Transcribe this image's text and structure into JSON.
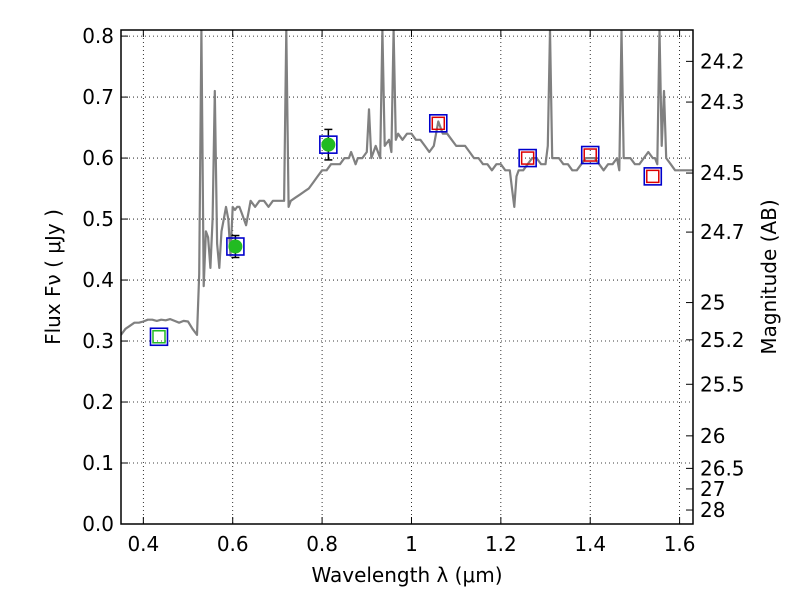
{
  "chart_data": {
    "type": "line",
    "xlabel": "Wavelength  λ (μm)",
    "ylabel": "Flux  Fν ( μJy )",
    "y2label": "Magnitude (AB)",
    "xlim": [
      0.35,
      1.63
    ],
    "ylim": [
      0.0,
      0.81
    ],
    "xticks": [
      0.4,
      0.6,
      0.8,
      1.0,
      1.2,
      1.4,
      1.6
    ],
    "xtick_labels": [
      "0.4",
      "0.6",
      "0.8",
      "1",
      "1.2",
      "1.4",
      "1.6"
    ],
    "yticks": [
      0.0,
      0.1,
      0.2,
      0.3,
      0.4,
      0.5,
      0.6,
      0.7,
      0.8
    ],
    "ytick_labels": [
      "0.0",
      "0.1",
      "0.2",
      "0.3",
      "0.4",
      "0.5",
      "0.6",
      "0.7",
      "0.8"
    ],
    "magnitude_ticks": [
      24.2,
      24.3,
      24.5,
      24.7,
      25,
      25.2,
      25.5,
      26,
      26.5,
      27,
      28
    ],
    "magnitude_tick_labels": [
      "24.2",
      "24.3",
      "24.5",
      "24.7",
      "25",
      "25.2",
      "25.5",
      "26",
      "26.5",
      "27",
      "28"
    ],
    "grid": true,
    "colors": {
      "model": "#808080",
      "observed": "#22bb22",
      "model_box": "#0000cc",
      "predicted_box": "#dd0000",
      "green_box": "#22bb22",
      "error_bar": "#000000"
    },
    "series": [
      {
        "kind": "model-spectrum",
        "x": [
          0.35,
          0.36,
          0.37,
          0.38,
          0.39,
          0.4,
          0.41,
          0.42,
          0.43,
          0.44,
          0.45,
          0.46,
          0.47,
          0.48,
          0.49,
          0.5,
          0.51,
          0.52,
          0.525,
          0.53,
          0.535,
          0.54,
          0.545,
          0.55,
          0.555,
          0.56,
          0.565,
          0.57,
          0.575,
          0.58,
          0.585,
          0.59,
          0.595,
          0.6,
          0.605,
          0.61,
          0.615,
          0.62,
          0.625,
          0.63,
          0.635,
          0.64,
          0.65,
          0.66,
          0.67,
          0.68,
          0.69,
          0.7,
          0.71,
          0.715,
          0.72,
          0.725,
          0.73,
          0.74,
          0.75,
          0.76,
          0.77,
          0.78,
          0.79,
          0.8,
          0.81,
          0.82,
          0.83,
          0.84,
          0.85,
          0.86,
          0.865,
          0.87,
          0.875,
          0.88,
          0.89,
          0.9,
          0.905,
          0.91,
          0.92,
          0.93,
          0.935,
          0.94,
          0.95,
          0.955,
          0.96,
          0.965,
          0.97,
          0.98,
          0.99,
          1.0,
          1.01,
          1.02,
          1.03,
          1.04,
          1.05,
          1.06,
          1.07,
          1.08,
          1.09,
          1.1,
          1.11,
          1.12,
          1.13,
          1.14,
          1.15,
          1.16,
          1.17,
          1.18,
          1.19,
          1.2,
          1.21,
          1.22,
          1.225,
          1.23,
          1.235,
          1.24,
          1.25,
          1.26,
          1.27,
          1.28,
          1.29,
          1.3,
          1.305,
          1.31,
          1.315,
          1.32,
          1.33,
          1.34,
          1.35,
          1.36,
          1.37,
          1.38,
          1.39,
          1.4,
          1.41,
          1.42,
          1.43,
          1.44,
          1.45,
          1.46,
          1.465,
          1.47,
          1.475,
          1.48,
          1.49,
          1.5,
          1.51,
          1.52,
          1.53,
          1.54,
          1.545,
          1.55,
          1.555,
          1.56,
          1.565,
          1.57,
          1.58,
          1.59,
          1.6,
          1.61,
          1.62,
          1.63
        ],
        "y": [
          0.31,
          0.32,
          0.325,
          0.33,
          0.33,
          0.332,
          0.335,
          0.335,
          0.333,
          0.335,
          0.334,
          0.336,
          0.333,
          0.33,
          0.333,
          0.332,
          0.32,
          0.31,
          0.41,
          0.81,
          0.39,
          0.48,
          0.47,
          0.42,
          0.5,
          0.71,
          0.46,
          0.42,
          0.48,
          0.5,
          0.52,
          0.5,
          0.44,
          0.52,
          0.515,
          0.52,
          0.52,
          0.51,
          0.5,
          0.49,
          0.51,
          0.53,
          0.52,
          0.53,
          0.53,
          0.52,
          0.53,
          0.53,
          0.53,
          0.53,
          0.81,
          0.52,
          0.53,
          0.535,
          0.54,
          0.545,
          0.55,
          0.56,
          0.57,
          0.58,
          0.58,
          0.59,
          0.59,
          0.59,
          0.6,
          0.6,
          0.61,
          0.6,
          0.59,
          0.6,
          0.6,
          0.61,
          0.68,
          0.6,
          0.62,
          0.6,
          0.81,
          0.62,
          0.63,
          0.61,
          0.81,
          0.63,
          0.64,
          0.63,
          0.64,
          0.64,
          0.63,
          0.63,
          0.62,
          0.61,
          0.62,
          0.66,
          0.64,
          0.64,
          0.63,
          0.62,
          0.62,
          0.62,
          0.61,
          0.6,
          0.6,
          0.59,
          0.59,
          0.58,
          0.59,
          0.59,
          0.58,
          0.58,
          0.55,
          0.52,
          0.57,
          0.58,
          0.58,
          0.59,
          0.6,
          0.6,
          0.59,
          0.59,
          0.62,
          0.81,
          0.6,
          0.6,
          0.6,
          0.59,
          0.59,
          0.58,
          0.58,
          0.59,
          0.6,
          0.6,
          0.6,
          0.59,
          0.58,
          0.59,
          0.59,
          0.6,
          0.58,
          0.81,
          0.6,
          0.6,
          0.6,
          0.59,
          0.59,
          0.6,
          0.61,
          0.6,
          0.6,
          0.59,
          0.81,
          0.62,
          0.71,
          0.6,
          0.59,
          0.58,
          0.58,
          0.58,
          0.58,
          0.58
        ]
      },
      {
        "kind": "model-photometry",
        "x": [
          0.435,
          0.606,
          0.814,
          1.06,
          1.26,
          1.4,
          1.54
        ],
        "y": [
          0.307,
          0.455,
          0.622,
          0.657,
          0.6,
          0.605,
          0.57
        ]
      },
      {
        "kind": "predicted-photometry",
        "x": [
          1.06,
          1.26,
          1.4,
          1.54
        ],
        "y": [
          0.657,
          0.6,
          0.605,
          0.57
        ]
      },
      {
        "kind": "observed-photometry",
        "x": [
          0.435,
          0.606,
          0.814
        ],
        "y": [
          0.307,
          0.455,
          0.622
        ],
        "yerr": [
          0.0,
          0.018,
          0.025
        ]
      }
    ]
  }
}
